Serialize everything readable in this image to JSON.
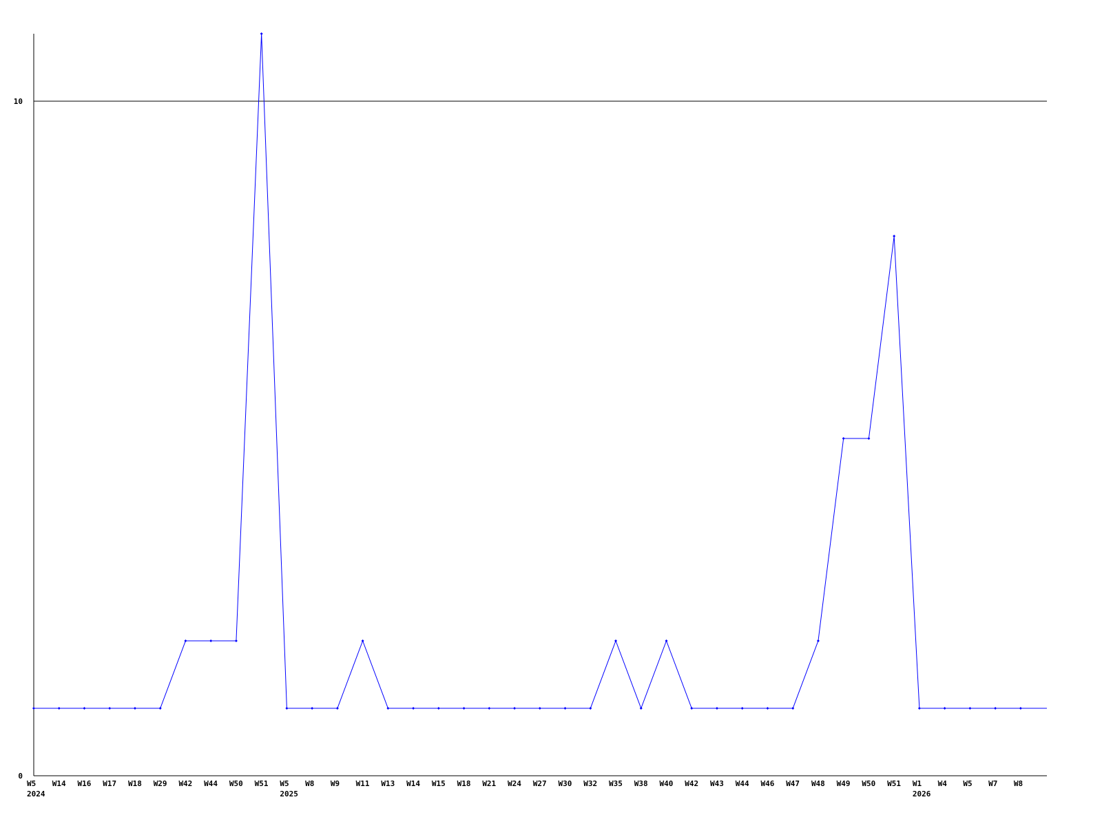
{
  "chart_data": {
    "type": "line",
    "title": "",
    "xlabel": "",
    "ylabel": "",
    "ylim": [
      0,
      11
    ],
    "yticks": [
      0,
      10
    ],
    "grid": false,
    "reference_line_at": 10,
    "line_color": "#0000ff",
    "axis_color": "#000000",
    "categories": [
      "W5",
      "W14",
      "W16",
      "W17",
      "W18",
      "W29",
      "W42",
      "W44",
      "W50",
      "W51",
      "W5",
      "W8",
      "W9",
      "W11",
      "W13",
      "W14",
      "W15",
      "W18",
      "W21",
      "W24",
      "W27",
      "W30",
      "W32",
      "W35",
      "W38",
      "W40",
      "W42",
      "W43",
      "W44",
      "W46",
      "W47",
      "W48",
      "W49",
      "W50",
      "W51",
      "W1",
      "W4",
      "W5",
      "W7",
      "W8"
    ],
    "year_labels": [
      {
        "index": 0,
        "label": "2024"
      },
      {
        "index": 10,
        "label": "2025"
      },
      {
        "index": 35,
        "label": "2026"
      }
    ],
    "values": [
      1,
      1,
      1,
      1,
      1,
      1,
      2,
      2,
      2,
      11,
      1,
      1,
      1,
      2,
      1,
      1,
      1,
      1,
      1,
      1,
      1,
      1,
      1,
      2,
      1,
      2,
      1,
      1,
      1,
      1,
      1,
      2,
      5,
      5,
      8,
      1,
      1,
      1,
      1,
      1
    ]
  }
}
